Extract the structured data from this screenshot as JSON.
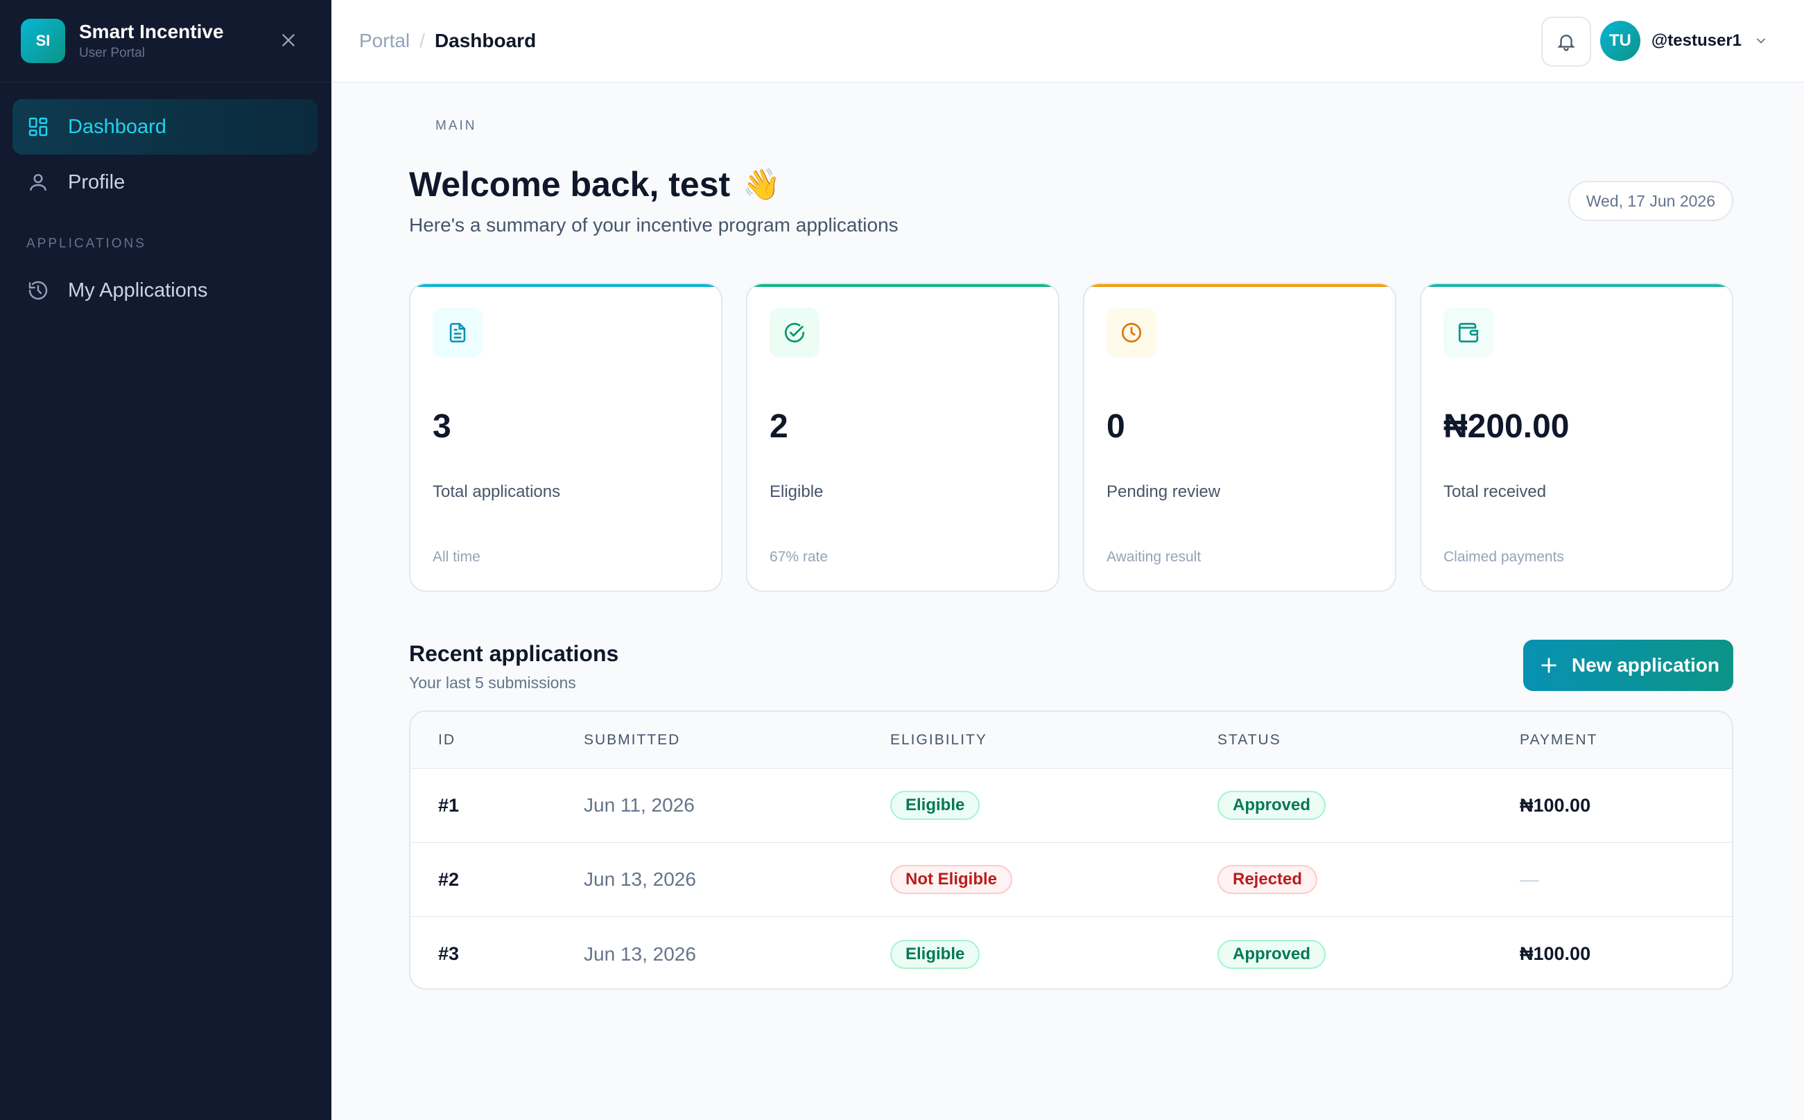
{
  "brand": {
    "initials": "SI",
    "title": "Smart Incentive",
    "subtitle": "User Portal"
  },
  "sidebar": {
    "section_main": "MAIN",
    "section_apps": "APPLICATIONS",
    "items": [
      {
        "label": "Dashboard",
        "icon": "dashboard-grid-icon",
        "active": true
      },
      {
        "label": "Profile",
        "icon": "user-icon",
        "active": false
      },
      {
        "label": "My Applications",
        "icon": "history-icon",
        "active": false
      }
    ]
  },
  "topbar": {
    "breadcrumb": [
      "Portal",
      "/",
      "Dashboard"
    ],
    "user": {
      "initials": "TU",
      "username": "@testuser1"
    }
  },
  "main": {
    "welcome": "Welcome back, test",
    "wave": "👋",
    "subtitle": "Here's a summary of your incentive program applications",
    "date": "Wed, 17 Jun 2026"
  },
  "stats": [
    {
      "value": "3",
      "label": "Total applications",
      "note": "All time",
      "icon": "document-icon",
      "accent": "#06b6d4"
    },
    {
      "value": "2",
      "label": "Eligible",
      "note": "67% rate",
      "icon": "check-circle-icon",
      "accent": "#10b981"
    },
    {
      "value": "0",
      "label": "Pending review",
      "note": "Awaiting result",
      "icon": "clock-icon",
      "accent": "#f59e0b"
    },
    {
      "value": "₦200.00",
      "label": "Total received",
      "note": "Claimed payments",
      "icon": "wallet-icon",
      "accent": "#14b8a6"
    }
  ],
  "recent": {
    "title": "Recent applications",
    "subtitle": "Your last 5 submissions",
    "new_button": "New application",
    "columns": [
      "ID",
      "SUBMITTED",
      "ELIGIBILITY",
      "STATUS",
      "PAYMENT"
    ],
    "rows": [
      {
        "id": "#1",
        "submitted": "Jun 11, 2026",
        "eligibility": "Eligible",
        "status": "Approved",
        "payment": "₦100.00"
      },
      {
        "id": "#2",
        "submitted": "Jun 13, 2026",
        "eligibility": "Not Eligible",
        "status": "Rejected",
        "payment": "—"
      },
      {
        "id": "#3",
        "submitted": "Jun 13, 2026",
        "eligibility": "Eligible",
        "status": "Approved",
        "payment": "₦100.00"
      }
    ]
  }
}
